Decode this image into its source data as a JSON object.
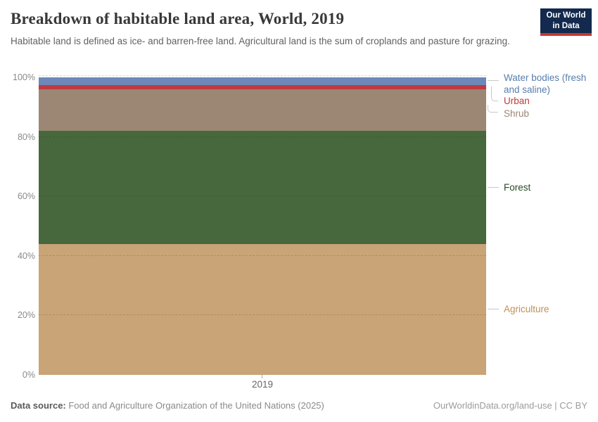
{
  "header": {
    "title": "Breakdown of habitable land area, World, 2019",
    "subtitle": "Habitable land is defined as ice- and barren-free land. Agricultural land is the sum of croplands and pasture for grazing.",
    "logo": {
      "line1": "Our World",
      "line2": "in Data",
      "bg_color": "#13294d",
      "stripe_color": "#c5392f"
    }
  },
  "chart_data": {
    "type": "area",
    "title": "Breakdown of habitable land area, World, 2019",
    "x": [
      2019
    ],
    "unit": "%",
    "ylim": [
      0,
      100
    ],
    "grid": true,
    "legend_position": "right",
    "stack_order_bottom_to_top": [
      "Agriculture",
      "Forest",
      "Shrub",
      "Urban",
      "Water bodies (fresh and saline)"
    ],
    "series": [
      {
        "name": "Agriculture",
        "values": [
          44.0
        ],
        "color": "#c9a477",
        "label_color": "#bf9058"
      },
      {
        "name": "Forest",
        "values": [
          38.0
        ],
        "color": "#47683c",
        "label_color": "#254a26"
      },
      {
        "name": "Shrub",
        "values": [
          13.9
        ],
        "color": "#9b8773",
        "label_color": "#998770"
      },
      {
        "name": "Urban",
        "values": [
          1.5
        ],
        "color": "#c03a3f",
        "label_color": "#c0393c"
      },
      {
        "name": "Water bodies (fresh and saline)",
        "values": [
          2.6
        ],
        "color": "#6e88b9",
        "label_color": "#577eae"
      }
    ],
    "yticks": [
      {
        "value": 0,
        "label": "0%"
      },
      {
        "value": 20,
        "label": "20%"
      },
      {
        "value": 40,
        "label": "40%"
      },
      {
        "value": 60,
        "label": "60%"
      },
      {
        "value": 80,
        "label": "80%"
      },
      {
        "value": 100,
        "label": "100%"
      }
    ],
    "xticks": [
      {
        "value": 2019,
        "label": "2019"
      }
    ]
  },
  "legend": {
    "items": [
      {
        "label": "Water bodies (fresh and saline)",
        "color": "#577eae"
      },
      {
        "label": "Urban",
        "color": "#c0393c"
      },
      {
        "label": "Shrub",
        "color": "#998770"
      },
      {
        "label": "Forest",
        "color": "#254a26"
      },
      {
        "label": "Agriculture",
        "color": "#bf9058"
      }
    ]
  },
  "footer": {
    "source_label": "Data source:",
    "source_text": " Food and Agriculture Organization of the United Nations (2025)",
    "right_text": "OurWorldinData.org/land-use | CC BY"
  }
}
